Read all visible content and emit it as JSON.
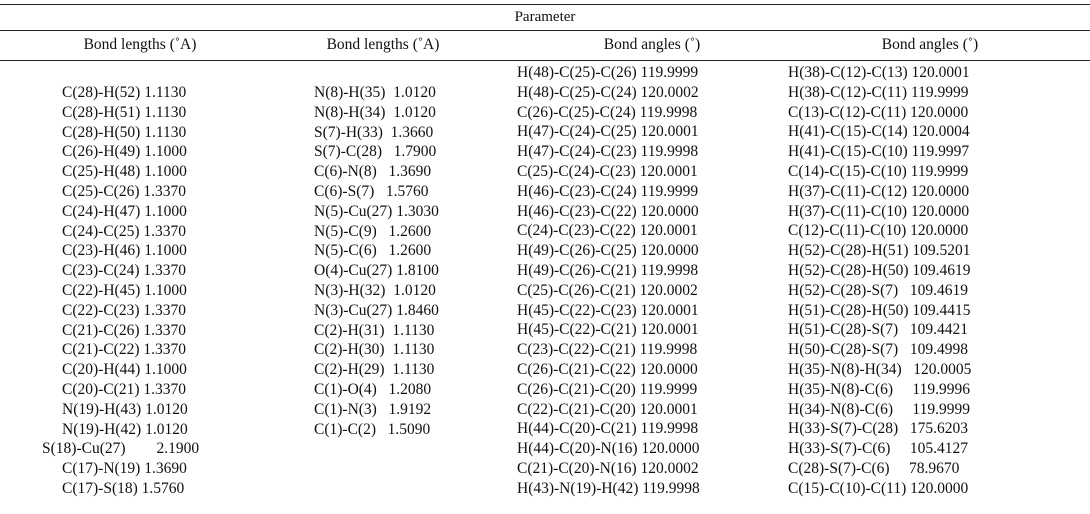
{
  "title": "Parameter",
  "headers": [
    "Bond lengths (˚A)",
    "Bond lengths (˚A)",
    "Bond angles (˚)",
    "Bond angles (˚)"
  ],
  "columns": [
    [
      "C(28)-H(52) 1.1130",
      "C(28)-H(51) 1.1130",
      "C(28)-H(50) 1.1130",
      "C(26)-H(49) 1.1000",
      "C(25)-H(48) 1.1000",
      "C(25)-C(26) 1.3370",
      "C(24)-H(47) 1.1000",
      "C(24)-C(25) 1.3370",
      "C(23)-H(46) 1.1000",
      "C(23)-C(24) 1.3370",
      "C(22)-H(45) 1.1000",
      "C(22)-C(23) 1.3370",
      "C(21)-C(26) 1.3370",
      "C(21)-C(22) 1.3370",
      "C(20)-H(44) 1.1000",
      "C(20)-C(21) 1.3370",
      "N(19)-H(43) 1.0120",
      "N(19)-H(42) 1.0120",
      "S(18)-Cu(27)        2.1900",
      "C(17)-N(19) 1.3690",
      "C(17)-S(18) 1.5760"
    ],
    [
      "N(8)-H(35)  1.0120",
      "N(8)-H(34)  1.0120",
      "S(7)-H(33)  1.3660",
      "S(7)-C(28)   1.7900",
      "C(6)-N(8)   1.3690",
      "C(6)-S(7)   1.5760",
      "N(5)-Cu(27) 1.3030",
      "N(5)-C(9)   1.2600",
      "N(5)-C(6)   1.2600",
      "O(4)-Cu(27) 1.8100",
      "N(3)-H(32)  1.0120",
      "N(3)-Cu(27) 1.8460",
      "C(2)-H(31)  1.1130",
      "C(2)-H(30)  1.1130",
      "C(2)-H(29)  1.1130",
      "C(1)-O(4)   1.2080",
      "C(1)-N(3)   1.9192",
      "C(1)-C(2)   1.5090"
    ],
    [
      "H(48)-C(25)-C(26) 119.9999",
      "H(48)-C(25)-C(24) 120.0002",
      "C(26)-C(25)-C(24) 119.9998",
      "H(47)-C(24)-C(25) 120.0001",
      "H(47)-C(24)-C(23) 119.9998",
      "C(25)-C(24)-C(23) 120.0001",
      "H(46)-C(23)-C(24) 119.9999",
      "H(46)-C(23)-C(22) 120.0000",
      "C(24)-C(23)-C(22) 120.0001",
      "H(49)-C(26)-C(25) 120.0000",
      "H(49)-C(26)-C(21) 119.9998",
      "C(25)-C(26)-C(21) 120.0002",
      "H(45)-C(22)-C(23) 120.0001",
      "H(45)-C(22)-C(21) 120.0001",
      "C(23)-C(22)-C(21) 119.9998",
      "C(26)-C(21)-C(22) 120.0000",
      "C(26)-C(21)-C(20) 119.9999",
      "C(22)-C(21)-C(20) 120.0001",
      "H(44)-C(20)-C(21) 119.9998",
      "H(44)-C(20)-N(16) 120.0000",
      "C(21)-C(20)-N(16) 120.0002",
      "H(43)-N(19)-H(42) 119.9998"
    ],
    [
      "H(38)-C(12)-C(13) 120.0001",
      "H(38)-C(12)-C(11) 119.9999",
      "C(13)-C(12)-C(11) 120.0000",
      "H(41)-C(15)-C(14) 120.0004",
      "H(41)-C(15)-C(10) 119.9997",
      "C(14)-C(15)-C(10) 119.9999",
      "H(37)-C(11)-C(12) 120.0000",
      "H(37)-C(11)-C(10) 120.0000",
      "C(12)-C(11)-C(10) 120.0000",
      "H(52)-C(28)-H(51) 109.5201",
      "H(52)-C(28)-H(50) 109.4619",
      "H(52)-C(28)-S(7)   109.4619",
      "H(51)-C(28)-H(50) 109.4415",
      "H(51)-C(28)-S(7)   109.4421",
      "H(50)-C(28)-S(7)   109.4998",
      "H(35)-N(8)-H(34)   120.0005",
      "H(35)-N(8)-C(6)     119.9996",
      "H(34)-N(8)-C(6)     119.9999",
      "H(33)-S(7)-C(28)   175.6203",
      "H(33)-S(7)-C(6)     105.4127",
      "C(28)-S(7)-C(6)     78.9670",
      "C(15)-C(10)-C(11) 120.0000"
    ]
  ]
}
